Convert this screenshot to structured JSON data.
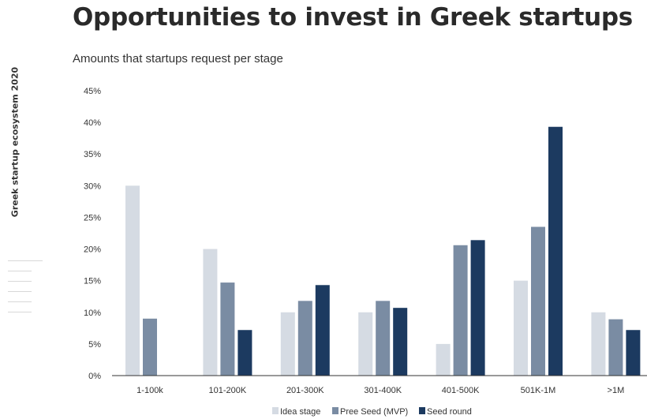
{
  "header": {
    "title": "Opportunities to invest in Greek startups",
    "subtitle": "Amounts that startups request per stage",
    "side_label": "Greek startup ecosystem 2020"
  },
  "colors": {
    "idea": "#d5dbe3",
    "pree_seed": "#7a8ca3",
    "seed": "#1c3a60",
    "axis": "#333333"
  },
  "chart_data": {
    "type": "bar",
    "title": "",
    "xlabel": "",
    "ylabel": "",
    "ylim": [
      0,
      45
    ],
    "yticks": [
      "0%",
      "5%",
      "10%",
      "15%",
      "20%",
      "25%",
      "30%",
      "35%",
      "40%",
      "45%"
    ],
    "grid": false,
    "legend_position": "bottom",
    "categories": [
      "1-100k",
      "101-200K",
      "201-300K",
      "301-400K",
      "401-500K",
      "501K-1M",
      ">1M"
    ],
    "series": [
      {
        "name": "Idea stage",
        "color": "#d5dbe3",
        "values": [
          30,
          20,
          10,
          10,
          5,
          15,
          10
        ]
      },
      {
        "name": "Pree Seed (MVP)",
        "color": "#7a8ca3",
        "values": [
          9,
          14.7,
          11.8,
          11.8,
          20.6,
          23.5,
          8.9
        ]
      },
      {
        "name": "Seed round",
        "color": "#1c3a60",
        "values": [
          0,
          7.2,
          14.3,
          10.7,
          21.4,
          39.3,
          7.2
        ]
      }
    ]
  }
}
